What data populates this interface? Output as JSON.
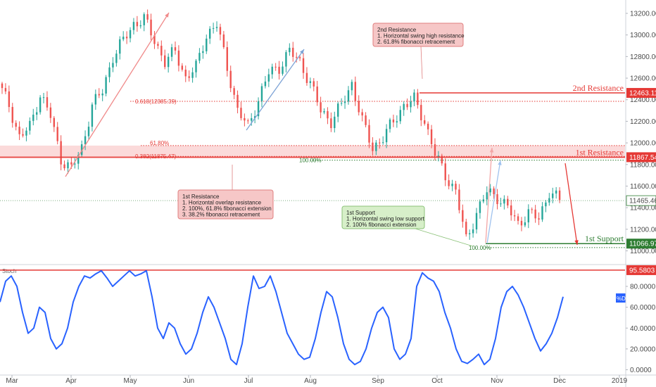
{
  "colors": {
    "up": "#26a69a",
    "down": "#ef5350",
    "resistance": "#e53935",
    "support": "#2e7d32",
    "stoch": "#2962ff",
    "zone": "#f8bcbc"
  },
  "chart_data": [
    {
      "type": "candlestick",
      "title": "",
      "xlabel": "",
      "ylabel": "",
      "ylim": [
        10950,
        13300
      ],
      "y_ticks": [
        "13200.00",
        "13000.00",
        "12800.00",
        "12600.00",
        "12400.00",
        "12200.00",
        "12000.00",
        "11800.00",
        "11600.00",
        "11400.00",
        "11200.00",
        "11000.00"
      ],
      "x_ticks": [
        "Mar",
        "Apr",
        "May",
        "Jun",
        "Jul",
        "Aug",
        "Sep",
        "Oct",
        "Nov",
        "Dec",
        "2019"
      ],
      "grid": false,
      "close_path": [
        [
          "Mar",
          12550
        ],
        [
          "Mar",
          12350
        ],
        [
          "Mar",
          12050
        ],
        [
          "Mar",
          12150
        ],
        [
          "Mar",
          12450
        ],
        [
          "Apr",
          12250
        ],
        [
          "Apr",
          11850
        ],
        [
          "Apr",
          11760
        ],
        [
          "Apr",
          11950
        ],
        [
          "Apr",
          12350
        ],
        [
          "Apr",
          12480
        ],
        [
          "May",
          12800
        ],
        [
          "May",
          12950
        ],
        [
          "May",
          13100
        ],
        [
          "May",
          13150
        ],
        [
          "May",
          12950
        ],
        [
          "Jun",
          12750
        ],
        [
          "Jun",
          12850
        ],
        [
          "Jun",
          12600
        ],
        [
          "Jun",
          12700
        ],
        [
          "Jun",
          13000
        ],
        [
          "Jun",
          13100
        ],
        [
          "Jul",
          12700
        ],
        [
          "Jul",
          12300
        ],
        [
          "Jul",
          12150
        ],
        [
          "Jul",
          12400
        ],
        [
          "Jul",
          12650
        ],
        [
          "Aug",
          12700
        ],
        [
          "Aug",
          12850
        ],
        [
          "Aug",
          12750
        ],
        [
          "Aug",
          12550
        ],
        [
          "Aug",
          12300
        ],
        [
          "Aug",
          12200
        ],
        [
          "Sep",
          12350
        ],
        [
          "Sep",
          12550
        ],
        [
          "Sep",
          12200
        ],
        [
          "Sep",
          11950
        ],
        [
          "Sep",
          12050
        ],
        [
          "Sep",
          12200
        ],
        [
          "Oct",
          12350
        ],
        [
          "Oct",
          12400
        ],
        [
          "Oct",
          12200
        ],
        [
          "Oct",
          11900
        ],
        [
          "Oct",
          11700
        ],
        [
          "Oct",
          11550
        ],
        [
          "Nov",
          11100
        ],
        [
          "Nov",
          11350
        ],
        [
          "Nov",
          11550
        ],
        [
          "Nov",
          11500
        ],
        [
          "Nov",
          11400
        ],
        [
          "Nov",
          11250
        ],
        [
          "Dec",
          11350
        ],
        [
          "Dec",
          11300
        ],
        [
          "Dec",
          11550
        ],
        [
          "Dec",
          11465
        ]
      ],
      "annotations": {
        "second_resistance": {
          "value": 12463.11,
          "label": "2nd Resistance",
          "price_label": "12463.11"
        },
        "first_resistance": {
          "value": 11867.54,
          "label": "1st Resistance",
          "price_label": "11867.54"
        },
        "first_support": {
          "value": 11066.97,
          "label": "1st Support",
          "price_label": "11066.97"
        },
        "current": {
          "value": 11465.46,
          "price_label": "11465.46"
        },
        "fib_levels": [
          {
            "label": "0.618(12385.39)",
            "value": 12385.39
          },
          {
            "label": "61.80%",
            "value": 11975
          },
          {
            "label": "0.382(11875.47)",
            "value": 11875.47
          },
          {
            "label": "100.00%",
            "value": 11840
          },
          {
            "label": "100.00%",
            "value": 11030
          }
        ],
        "notes": {
          "second_resistance_box": [
            "2nd Resistance",
            "1. Horizontal swing high resistance",
            "2. 61.8% fibonacci retracement"
          ],
          "first_resistance_box": [
            "1st Resistance",
            "1. Horizontal overlap resistance",
            "2. 100%, 61.8% fibonacci extension",
            "3. 38.2% fibonacci retracement"
          ],
          "first_support_box": [
            "1st Support",
            "1. Horizontal swing low support",
            "2. 100% fibonacci extension"
          ]
        }
      }
    },
    {
      "type": "line",
      "title": "",
      "series": [
        {
          "name": "Stoch",
          "short": "%D"
        }
      ],
      "ylim": [
        0,
        100
      ],
      "y_ticks": [
        "80.0000",
        "60.0000",
        "40.0000",
        "20.0000",
        "0.0000"
      ],
      "overbought": {
        "value": 95.5803,
        "price_label": "95.5803"
      },
      "x": [
        0,
        0.5,
        1,
        1.5,
        2,
        2.5,
        3,
        3.5,
        4,
        4.5,
        5,
        5.5,
        6,
        6.5,
        7,
        7.5,
        8,
        8.5,
        9,
        9.5,
        10,
        10.5,
        11,
        11.5,
        12,
        12.5,
        13,
        13.5,
        14,
        14.5,
        15,
        15.5,
        16,
        16.5,
        17,
        17.5,
        18,
        18.5,
        19,
        19.5,
        20,
        20.5,
        21,
        21.5,
        22,
        22.5,
        23,
        23.5,
        24,
        24.5,
        25,
        25.5,
        26,
        26.5,
        27,
        27.5,
        28,
        28.5,
        29,
        29.5,
        30,
        30.5,
        31,
        31.5,
        32,
        32.5,
        33,
        33.5,
        34,
        34.5,
        35,
        35.5,
        36,
        36.5,
        37,
        37.5,
        38,
        38.5,
        39,
        39.5,
        40,
        40.5,
        41,
        41.5,
        42,
        42.5,
        43,
        43.5,
        44,
        44.5,
        45,
        45.5,
        46,
        46.5,
        47,
        47.5,
        48,
        48.5,
        49,
        49.5,
        50
      ],
      "values": [
        65,
        85,
        90,
        80,
        55,
        35,
        40,
        60,
        55,
        30,
        20,
        25,
        40,
        65,
        80,
        90,
        88,
        92,
        95,
        88,
        80,
        85,
        90,
        95,
        90,
        92,
        95,
        70,
        40,
        30,
        45,
        40,
        25,
        15,
        20,
        35,
        55,
        70,
        60,
        45,
        30,
        10,
        5,
        25,
        60,
        90,
        78,
        80,
        90,
        75,
        55,
        35,
        25,
        15,
        10,
        12,
        30,
        55,
        75,
        70,
        50,
        25,
        10,
        5,
        8,
        20,
        40,
        55,
        60,
        50,
        20,
        10,
        15,
        30,
        80,
        93,
        88,
        85,
        75,
        55,
        40,
        20,
        8,
        6,
        10,
        15,
        5,
        10,
        30,
        60,
        75,
        80,
        72,
        60,
        45,
        30,
        18,
        25,
        35,
        50,
        70
      ]
    }
  ]
}
